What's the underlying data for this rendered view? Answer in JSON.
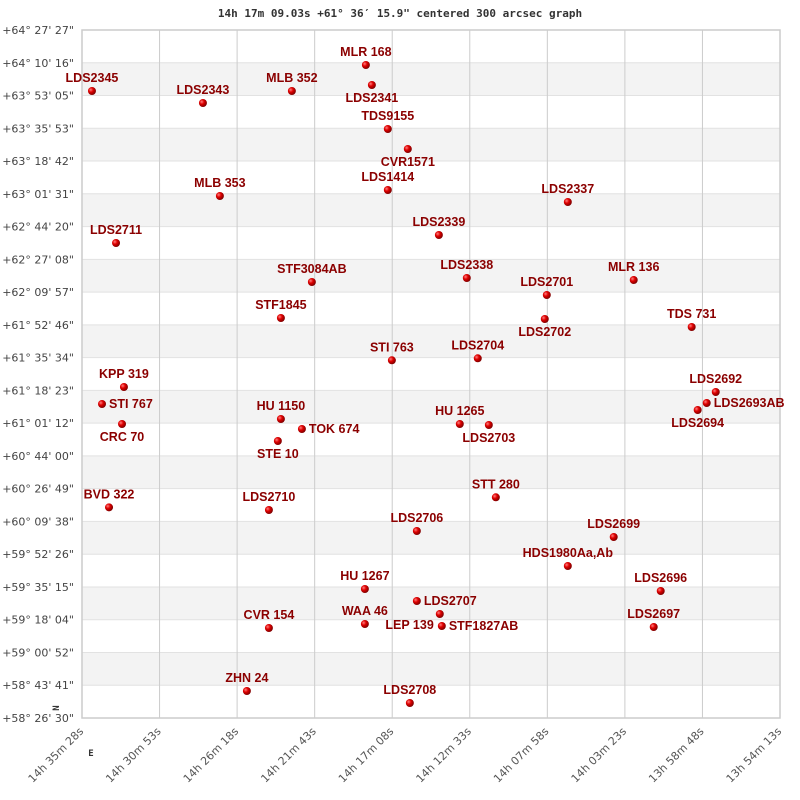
{
  "chart_data": {
    "type": "scatter",
    "title": "14h 17m 09.03s +61° 36′ 15.9\" centered 300 arcsec graph",
    "xlabel": "",
    "ylabel": "",
    "xlim": [
      14.59111,
      13.90361
    ],
    "ylim": [
      58.44167,
      64.4575
    ],
    "x_units": "right ascension (hours)",
    "y_units": "declination (degrees)",
    "grid": true,
    "x_ticks": [
      "14h 35m 28s",
      "14h 30m 53s",
      "14h 26m 18s",
      "14h 21m 43s",
      "14h 17m 08s",
      "14h 12m 33s",
      "14h 07m 58s",
      "14h 03m 23s",
      "13h 58m 48s",
      "13h 54m 13s"
    ],
    "y_ticks": [
      "+64° 27' 27\"",
      "+64° 10' 16\"",
      "+63° 53' 05\"",
      "+63° 35' 53\"",
      "+63° 18' 42\"",
      "+63° 01' 31\"",
      "+62° 44' 20\"",
      "+62° 27' 08\"",
      "+62° 09' 57\"",
      "+61° 52' 46\"",
      "+61° 35' 34\"",
      "+61° 18' 23\"",
      "+61° 01' 12\"",
      "+60° 44' 00\"",
      "+60° 26' 49\"",
      "+60° 09' 38\"",
      "+59° 52' 26\"",
      "+59° 35' 15\"",
      "+59° 18' 04\"",
      "+59° 00' 52\"",
      "+58° 43' 41\"",
      "+58° 26' 30\""
    ],
    "direction_labels": {
      "north": "N",
      "east": "E"
    },
    "colors": {
      "point": "#dd0000",
      "label": "#8b0000",
      "band": "#f3f3f3",
      "grid": "#cccccc"
    },
    "points": [
      {
        "name": "LDS2345",
        "ra": 14.5813,
        "dec": 63.9241
      },
      {
        "name": "LDS2343",
        "ra": 14.472,
        "dec": 63.8192
      },
      {
        "name": "MLB 352",
        "ra": 14.3844,
        "dec": 63.9241
      },
      {
        "name": "MLR 168",
        "ra": 14.3115,
        "dec": 64.1515
      },
      {
        "name": "LDS2341",
        "ra": 14.3056,
        "dec": 63.9766
      },
      {
        "name": "TDS9155",
        "ra": 14.2899,
        "dec": 63.5918
      },
      {
        "name": "CVR1571",
        "ra": 14.2702,
        "dec": 63.417
      },
      {
        "name": "MLB 353",
        "ra": 14.4553,
        "dec": 63.006
      },
      {
        "name": "LDS1414",
        "ra": 14.2899,
        "dec": 63.0585
      },
      {
        "name": "LDS2337",
        "ra": 14.1126,
        "dec": 62.9535
      },
      {
        "name": "LDS2339",
        "ra": 14.2396,
        "dec": 62.665
      },
      {
        "name": "LDS2711",
        "ra": 14.5576,
        "dec": 62.595
      },
      {
        "name": "STF3084AB",
        "ra": 14.3647,
        "dec": 62.254
      },
      {
        "name": "LDS2338",
        "ra": 14.2121,
        "dec": 62.289
      },
      {
        "name": "MLR 136",
        "ra": 14.0477,
        "dec": 62.2715
      },
      {
        "name": "LDS2701",
        "ra": 14.1333,
        "dec": 62.1403
      },
      {
        "name": "LDS2702",
        "ra": 14.1353,
        "dec": 61.9305
      },
      {
        "name": "STF1845",
        "ra": 14.3952,
        "dec": 61.9392
      },
      {
        "name": "TDS 731",
        "ra": 13.9906,
        "dec": 61.8605
      },
      {
        "name": "LDS2704",
        "ra": 14.2013,
        "dec": 61.5868
      },
      {
        "name": "STI 763",
        "ra": 14.2859,
        "dec": 61.5693
      },
      {
        "name": "KPP 319",
        "ra": 14.5498,
        "dec": 61.3359
      },
      {
        "name": "STI 767",
        "ra": 14.5714,
        "dec": 61.1872
      },
      {
        "name": "CRC  70",
        "ra": 14.5517,
        "dec": 61.0124
      },
      {
        "name": "HU 1150",
        "ra": 14.3952,
        "dec": 61.0561
      },
      {
        "name": "TOK 674",
        "ra": 14.3745,
        "dec": 60.9686
      },
      {
        "name": "STE  10",
        "ra": 14.3982,
        "dec": 60.8637
      },
      {
        "name": "HU 1265",
        "ra": 14.219,
        "dec": 61.0124
      },
      {
        "name": "LDS2703",
        "ra": 14.1904,
        "dec": 61.0037
      },
      {
        "name": "LDS2692",
        "ra": 13.9669,
        "dec": 61.2922
      },
      {
        "name": "LDS2693AB",
        "ra": 13.9758,
        "dec": 61.196
      },
      {
        "name": "LDS2694",
        "ra": 13.9847,
        "dec": 61.1348
      },
      {
        "name": "STT 280",
        "ra": 14.1835,
        "dec": 60.3714
      },
      {
        "name": "BVD 322",
        "ra": 14.5645,
        "dec": 60.2839
      },
      {
        "name": "LDS2710",
        "ra": 14.407,
        "dec": 60.2604
      },
      {
        "name": "LDS2706",
        "ra": 14.2613,
        "dec": 60.0767
      },
      {
        "name": "LDS2699",
        "ra": 14.0674,
        "dec": 60.0243
      },
      {
        "name": "HDS1980Aa,Ab",
        "ra": 14.1126,
        "dec": 59.7707
      },
      {
        "name": "HU 1267",
        "ra": 14.3125,
        "dec": 59.5696
      },
      {
        "name": "LDS2696",
        "ra": 14.0211,
        "dec": 59.5521
      },
      {
        "name": "LDS2707",
        "ra": 14.2613,
        "dec": 59.4647
      },
      {
        "name": "LEP 139",
        "ra": 14.2387,
        "dec": 59.351
      },
      {
        "name": "STF1827AB",
        "ra": 14.2367,
        "dec": 59.2461
      },
      {
        "name": "WAA  46",
        "ra": 14.3125,
        "dec": 59.2636
      },
      {
        "name": "CVR 154",
        "ra": 14.407,
        "dec": 59.2286
      },
      {
        "name": "LDS2697",
        "ra": 14.028,
        "dec": 59.2373
      },
      {
        "name": "ZHN  24",
        "ra": 14.4287,
        "dec": 58.6777
      },
      {
        "name": "LDS2708",
        "ra": 14.2682,
        "dec": 58.5728
      }
    ]
  }
}
